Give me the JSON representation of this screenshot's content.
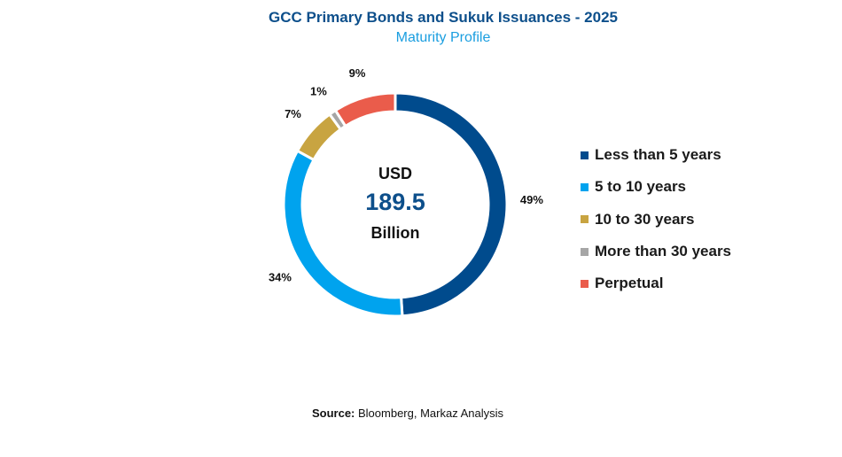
{
  "chart_data": {
    "type": "pie",
    "title": "GCC Primary Bonds and Sukuk Issuances - 2025",
    "subtitle": "Maturity Profile",
    "center": {
      "top_text": "USD",
      "value": "189.5",
      "bottom_text": "Billion"
    },
    "categories": [
      "Less than 5 years",
      "5 to 10 years",
      "10 to 30 years",
      "More than 30 years",
      "Perpetual"
    ],
    "values": [
      49,
      34,
      7,
      1,
      9
    ],
    "labels": [
      "49%",
      "34%",
      "7%",
      "1%",
      "9%"
    ],
    "colors": [
      "#004b8d",
      "#00a3ee",
      "#c8a441",
      "#a6a6a6",
      "#ea5c4b"
    ],
    "legend_position": "right",
    "legend_items": [
      {
        "label": "Less than 5 years",
        "color": "#004b8d"
      },
      {
        "label": "5 to 10 years",
        "color": "#00a3ee"
      },
      {
        "label": "10 to 30 years",
        "color": "#c8a441"
      },
      {
        "label": "More than 30 years",
        "color": "#a6a6a6"
      },
      {
        "label": "Perpetual",
        "color": "#ea5c4b"
      }
    ]
  },
  "source": {
    "label": "Source:",
    "text": " Bloomberg, Markaz Analysis"
  }
}
